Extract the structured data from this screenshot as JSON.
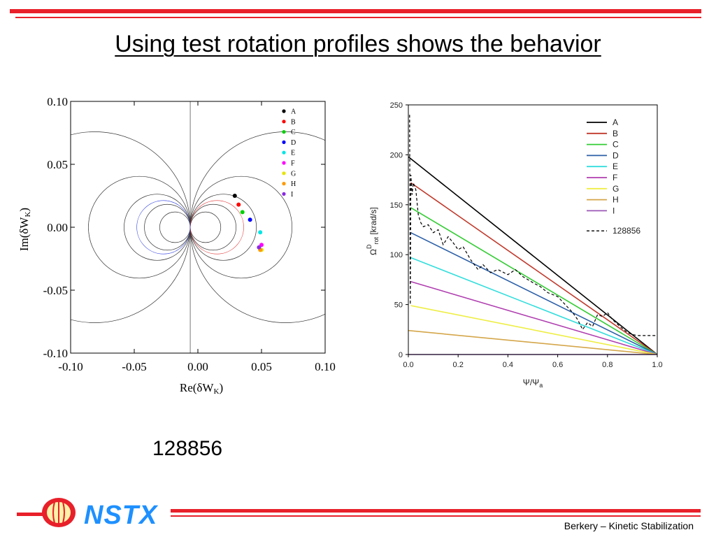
{
  "slide": {
    "title": "Using test rotation profiles shows the behavior",
    "caption": "128856",
    "footer": "Berkery – Kinetic Stabilization",
    "logo_text": "NSTX",
    "accent_color": "#e8202a"
  },
  "chart_data": [
    {
      "type": "scatter",
      "xlabel": "Re(δW",
      "xlabel_sub": "K",
      "ylabel": "Im(δW",
      "ylabel_sub": "K",
      "xlim": [
        -0.1,
        0.1
      ],
      "ylim": [
        -0.1,
        0.1
      ],
      "xticks": [
        "-0.10",
        "-0.05",
        "0.00",
        "0.05",
        "0.10"
      ],
      "yticks": [
        "0.10",
        "0.05",
        "0.00",
        "-0.05",
        "-0.10"
      ],
      "grid": "stability contour circles",
      "legend_position": "top-right",
      "series": [
        {
          "name": "A",
          "color": "#000000",
          "x": 0.029,
          "y": 0.025
        },
        {
          "name": "B",
          "color": "#ff0000",
          "x": 0.032,
          "y": 0.018
        },
        {
          "name": "C",
          "color": "#00d000",
          "x": 0.035,
          "y": 0.012
        },
        {
          "name": "D",
          "color": "#0000ff",
          "x": 0.041,
          "y": 0.006
        },
        {
          "name": "E",
          "color": "#00e5e5",
          "x": 0.049,
          "y": -0.004
        },
        {
          "name": "F",
          "color": "#ff00ff",
          "x": 0.05,
          "y": -0.014
        },
        {
          "name": "G",
          "color": "#e5e500",
          "x": 0.05,
          "y": -0.018
        },
        {
          "name": "H",
          "color": "#ff9900",
          "x": 0.049,
          "y": -0.018
        },
        {
          "name": "I",
          "color": "#8a2be2",
          "x": 0.048,
          "y": -0.016
        }
      ]
    },
    {
      "type": "line",
      "xlabel": "Ψ/Ψ",
      "xlabel_sub": "a",
      "ylabel": "Ω",
      "ylabel_sup": "D",
      "ylabel_sub": "rot",
      "ylabel_unit": " [krad/s]",
      "xlim": [
        0.0,
        1.0
      ],
      "ylim": [
        0,
        250
      ],
      "xticks": [
        "0.0",
        "0.2",
        "0.4",
        "0.6",
        "0.8",
        "1.0"
      ],
      "yticks": [
        "0",
        "50",
        "100",
        "150",
        "200",
        "250"
      ],
      "legend_position": "top-right",
      "series": [
        {
          "name": "A",
          "color": "#000000",
          "start": 198,
          "x0": 0.0
        },
        {
          "name": "B",
          "color": "#c0392b",
          "start": 172,
          "x0": 0.01
        },
        {
          "name": "C",
          "color": "#33cc33",
          "start": 147,
          "x0": 0.01
        },
        {
          "name": "D",
          "color": "#2c5fa8",
          "start": 122,
          "x0": 0.01
        },
        {
          "name": "E",
          "color": "#33dddd",
          "start": 97,
          "x0": 0.01
        },
        {
          "name": "F",
          "color": "#b03fb0",
          "start": 73,
          "x0": 0.01
        },
        {
          "name": "G",
          "color": "#eeee44",
          "start": 49,
          "x0": 0.01
        },
        {
          "name": "H",
          "color": "#d4a64a",
          "start": 24,
          "x0": 0.0
        },
        {
          "name": "I",
          "color": "#9b59b6",
          "start": 0,
          "x0": 0.0
        }
      ],
      "measured": {
        "name": "128856",
        "color": "#000000",
        "x": [
          0.005,
          0.008,
          0.01,
          0.015,
          0.02,
          0.03,
          0.04,
          0.05,
          0.06,
          0.08,
          0.1,
          0.12,
          0.14,
          0.16,
          0.18,
          0.2,
          0.22,
          0.25,
          0.28,
          0.3,
          0.33,
          0.36,
          0.4,
          0.43,
          0.46,
          0.5,
          0.53,
          0.56,
          0.6,
          0.63,
          0.66,
          0.68,
          0.7,
          0.72,
          0.74,
          0.76,
          0.78,
          0.8,
          0.82,
          0.85,
          0.88,
          0.9,
          0.92,
          0.95,
          1.0
        ],
        "y": [
          240,
          50,
          180,
          160,
          172,
          165,
          140,
          132,
          128,
          130,
          122,
          125,
          110,
          118,
          112,
          105,
          108,
          95,
          85,
          90,
          82,
          85,
          80,
          85,
          78,
          72,
          68,
          62,
          58,
          50,
          42,
          35,
          25,
          32,
          28,
          40,
          38,
          42,
          35,
          28,
          22,
          20,
          19,
          19,
          19
        ]
      }
    }
  ]
}
